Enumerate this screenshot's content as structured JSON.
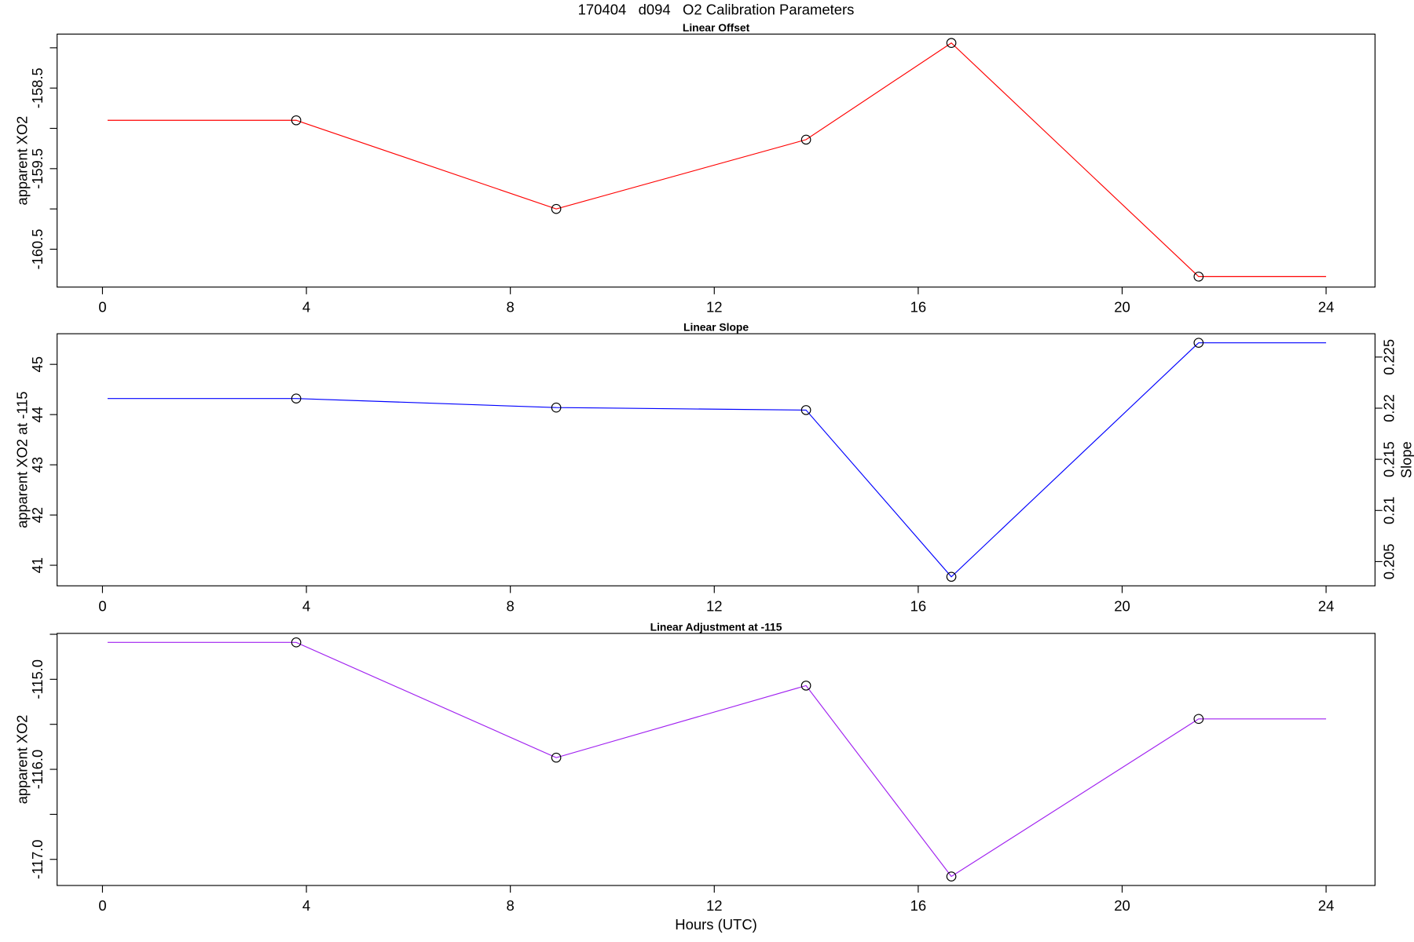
{
  "title": "170404   d094   O2 Calibration Parameters",
  "chart_data": [
    {
      "type": "line",
      "title": "Linear Offset",
      "ylabel": "apparent XO2",
      "xlim": [
        -0.89,
        24.96
      ],
      "xticks": [
        0,
        4,
        8,
        12,
        16,
        20,
        24
      ],
      "ylim": [
        -160.97,
        -157.83
      ],
      "yticks": [
        -158.5,
        -159.5,
        -160.5
      ],
      "yminor_ticks": [
        -158,
        -159,
        -160
      ],
      "series": [
        {
          "color": "#ff0000",
          "x": [
            0.1,
            3.8,
            8.9,
            13.8,
            16.65,
            21.5,
            24
          ],
          "values": [
            -158.9,
            -158.9,
            -160.0,
            -159.14,
            -157.94,
            -160.84,
            -160.84
          ],
          "marker": [
            false,
            true,
            true,
            true,
            true,
            true,
            false
          ]
        }
      ]
    },
    {
      "type": "line",
      "title": "Linear Slope",
      "ylabel": "apparent XO2 at -115",
      "y2label": "Slope",
      "xlim": [
        -0.89,
        24.96
      ],
      "xticks": [
        0,
        4,
        8,
        12,
        16,
        20,
        24
      ],
      "ylim": [
        40.59,
        45.61
      ],
      "yticks": [
        41,
        42,
        43,
        44,
        45
      ],
      "y2lim": [
        0.20263,
        0.22728
      ],
      "y2ticks": [
        0.205,
        0.21,
        0.215,
        0.22,
        0.225
      ],
      "series": [
        {
          "color": "#0000ff",
          "x": [
            0.1,
            3.8,
            8.9,
            13.8,
            16.65,
            21.5,
            24
          ],
          "values": [
            44.32,
            44.32,
            44.14,
            44.09,
            40.77,
            45.43,
            45.43
          ],
          "marker": [
            false,
            true,
            true,
            true,
            true,
            true,
            false
          ]
        }
      ]
    },
    {
      "type": "line",
      "title": "Linear Adjustment at -115",
      "ylabel": "apparent XO2",
      "xlabel": "Hours (UTC)",
      "xlim": [
        -0.89,
        24.96
      ],
      "xticks": [
        0,
        4,
        8,
        12,
        16,
        20,
        24
      ],
      "ylim": [
        -117.29,
        -114.49
      ],
      "yticks": [
        {
          "value": -115,
          "label": "-115.0"
        },
        {
          "value": -116,
          "label": "-116.0"
        },
        {
          "value": -117,
          "label": "-117.0"
        }
      ],
      "yminor_ticks": [
        -114.5,
        -115.5,
        -116.5
      ],
      "series": [
        {
          "color": "#a020f0",
          "x": [
            0.1,
            3.8,
            8.9,
            13.8,
            16.65,
            21.5,
            24
          ],
          "values": [
            -114.59,
            -114.59,
            -115.87,
            -115.07,
            -117.19,
            -115.44,
            -115.44
          ],
          "marker": [
            false,
            true,
            true,
            true,
            true,
            true,
            false
          ]
        }
      ]
    }
  ]
}
